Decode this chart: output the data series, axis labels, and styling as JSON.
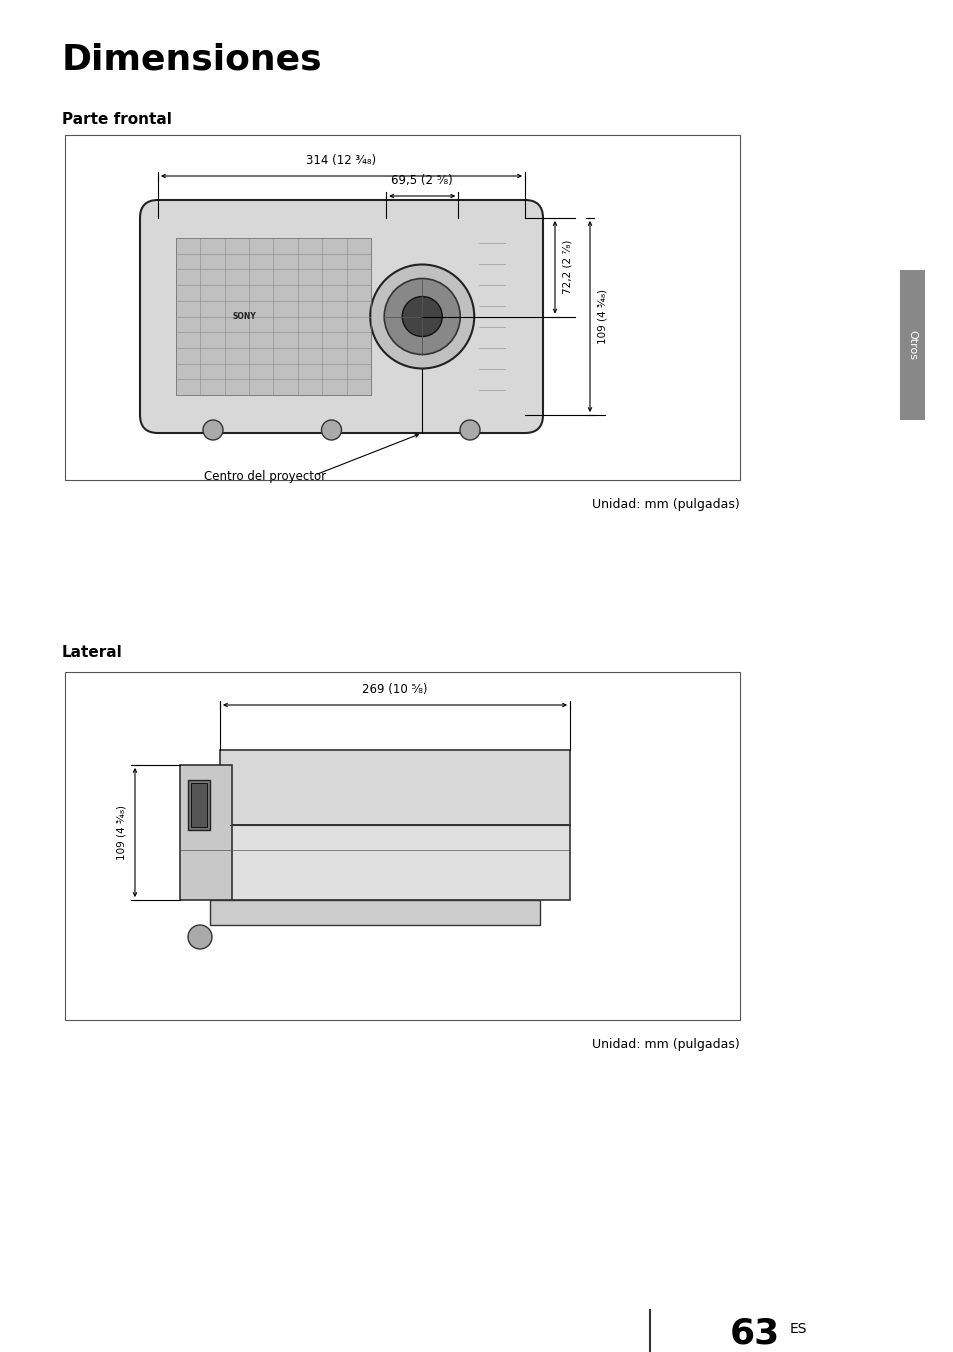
{
  "title": "Dimensiones",
  "title_fontsize": 26,
  "section1_label": "Parte frontal",
  "section2_label": "Lateral",
  "section_label_fontsize": 11,
  "unit_text": "Unidad: mm (pulgadas)",
  "unit_fontsize": 9,
  "page_number": "63",
  "page_suffix": "ES",
  "sidebar_text": "Otros",
  "bg_color": "#ffffff",
  "front_dim_314_label": "314 (12 ¾₈)",
  "front_dim_695_label": "69,5 (2 ⁵⁄₈)",
  "front_dim_722_label": "72,2 (2 ⁷⁄₈)",
  "front_dim_109_label": "109 (4 ¾₈)",
  "front_centro_label": "Centro del proyector",
  "lateral_dim_269_label": "269 (10 ⁵⁄₈)",
  "lateral_dim_109_label": "109 (4 ¾₈)"
}
